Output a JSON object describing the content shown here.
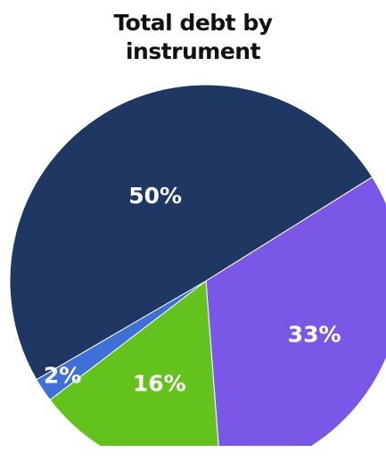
{
  "chart_data": {
    "type": "pie",
    "title_lines": [
      "Total debt by",
      "instrument"
    ],
    "slices": [
      {
        "value": 33,
        "label": "33%",
        "color": "#7b57e8"
      },
      {
        "value": 16,
        "label": "16%",
        "color": "#63c21c"
      },
      {
        "value": 2,
        "label": "2%",
        "color": "#3f6fd8"
      },
      {
        "value": 50,
        "label": "50%",
        "color": "#1f3763"
      }
    ]
  }
}
